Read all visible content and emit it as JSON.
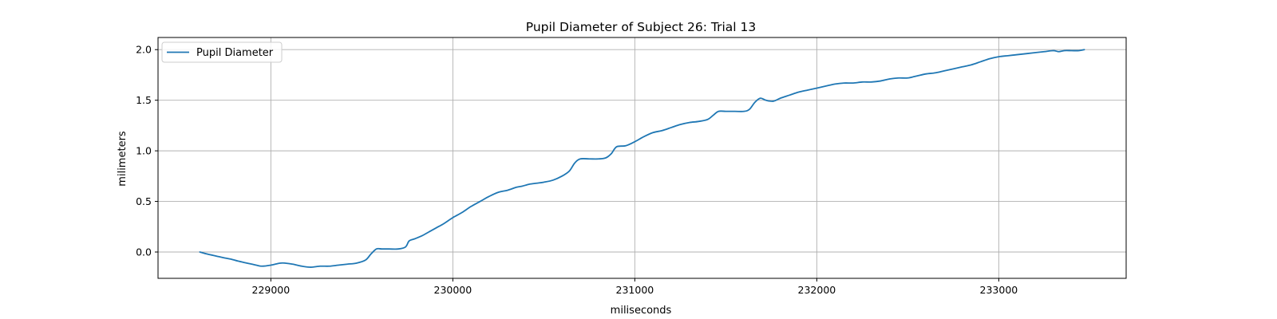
{
  "chart_data": {
    "type": "line",
    "title": "Pupil Diameter of Subject 26: Trial 13",
    "xlabel": "miliseconds",
    "ylabel": "milimeters",
    "xlim": [
      228380,
      233700
    ],
    "ylim": [
      -0.26,
      2.12
    ],
    "xticks": [
      229000,
      230000,
      231000,
      232000,
      233000
    ],
    "xtick_labels": [
      "229000",
      "230000",
      "231000",
      "232000",
      "233000"
    ],
    "yticks": [
      0.0,
      0.5,
      1.0,
      1.5,
      2.0
    ],
    "ytick_labels": [
      "0.0",
      "0.5",
      "1.0",
      "1.5",
      "2.0"
    ],
    "grid": true,
    "legend_position": "upper left",
    "line_color": "#1f77b4",
    "series": [
      {
        "name": "Pupil Diameter",
        "x": [
          228610,
          228650,
          228700,
          228750,
          228780,
          228820,
          228870,
          228920,
          228950,
          229000,
          229050,
          229080,
          229120,
          229170,
          229220,
          229270,
          229320,
          229370,
          229420,
          229470,
          229520,
          229550,
          229580,
          229610,
          229650,
          229700,
          229740,
          229760,
          229790,
          229830,
          229870,
          229910,
          229950,
          230000,
          230050,
          230100,
          230150,
          230200,
          230250,
          230300,
          230350,
          230380,
          230420,
          230460,
          230500,
          230550,
          230600,
          230640,
          230670,
          230700,
          230750,
          230800,
          230840,
          230870,
          230900,
          230950,
          231000,
          231050,
          231100,
          231150,
          231200,
          231250,
          231300,
          231350,
          231400,
          231430,
          231460,
          231500,
          231550,
          231600,
          231630,
          231660,
          231690,
          231720,
          231760,
          231800,
          231850,
          231900,
          231950,
          232000,
          232050,
          232100,
          232150,
          232200,
          232250,
          232300,
          232350,
          232400,
          232450,
          232500,
          232550,
          232600,
          232650,
          232700,
          232750,
          232800,
          232850,
          232900,
          232950,
          233000,
          233050,
          233100,
          233150,
          233200,
          233250,
          233300,
          233330,
          233360,
          233400,
          233440,
          233470
        ],
        "y": [
          0.0,
          -0.02,
          -0.04,
          -0.06,
          -0.07,
          -0.09,
          -0.11,
          -0.13,
          -0.14,
          -0.13,
          -0.11,
          -0.11,
          -0.12,
          -0.14,
          -0.15,
          -0.14,
          -0.14,
          -0.13,
          -0.12,
          -0.11,
          -0.08,
          -0.02,
          0.03,
          0.03,
          0.03,
          0.03,
          0.05,
          0.11,
          0.13,
          0.16,
          0.2,
          0.24,
          0.28,
          0.34,
          0.39,
          0.45,
          0.5,
          0.55,
          0.59,
          0.61,
          0.64,
          0.65,
          0.67,
          0.68,
          0.69,
          0.71,
          0.75,
          0.8,
          0.88,
          0.92,
          0.92,
          0.92,
          0.93,
          0.97,
          1.04,
          1.05,
          1.09,
          1.14,
          1.18,
          1.2,
          1.23,
          1.26,
          1.28,
          1.29,
          1.31,
          1.35,
          1.39,
          1.39,
          1.39,
          1.39,
          1.41,
          1.48,
          1.52,
          1.5,
          1.49,
          1.52,
          1.55,
          1.58,
          1.6,
          1.62,
          1.64,
          1.66,
          1.67,
          1.67,
          1.68,
          1.68,
          1.69,
          1.71,
          1.72,
          1.72,
          1.74,
          1.76,
          1.77,
          1.79,
          1.81,
          1.83,
          1.85,
          1.88,
          1.91,
          1.93,
          1.94,
          1.95,
          1.96,
          1.97,
          1.98,
          1.99,
          1.98,
          1.99,
          1.99,
          1.99,
          2.0
        ]
      }
    ]
  }
}
